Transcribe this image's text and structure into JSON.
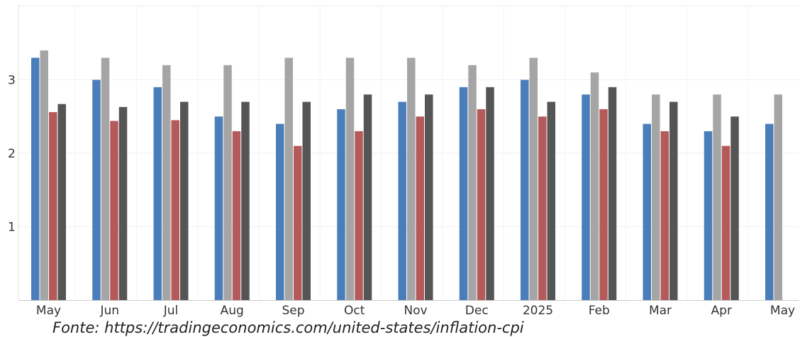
{
  "chart_data": {
    "type": "bar",
    "title": "",
    "xlabel": "",
    "ylabel": "",
    "categories": [
      "May",
      "Jun",
      "Jul",
      "Aug",
      "Sep",
      "Oct",
      "Nov",
      "Dec",
      "2025",
      "Feb",
      "Mar",
      "Apr",
      "May"
    ],
    "ylim": [
      0,
      4
    ],
    "yticks": [
      "1",
      "2",
      "3"
    ],
    "grid": true,
    "legend": "none",
    "series": [
      {
        "color": "#4a7ebb",
        "values": [
          3.3,
          3.0,
          2.9,
          2.5,
          2.4,
          2.6,
          2.7,
          2.9,
          3.0,
          2.8,
          2.4,
          2.3,
          2.4
        ]
      },
      {
        "color": "#a5a5a5",
        "values": [
          3.4,
          3.3,
          3.2,
          3.2,
          3.3,
          3.3,
          3.3,
          3.2,
          3.3,
          3.1,
          2.8,
          2.8,
          2.8
        ]
      },
      {
        "color": "#b55a5a",
        "values": [
          2.56,
          2.44,
          2.45,
          2.3,
          2.1,
          2.3,
          2.5,
          2.6,
          2.5,
          2.6,
          2.3,
          2.1,
          null
        ]
      },
      {
        "color": "#555555",
        "values": [
          2.67,
          2.63,
          2.7,
          2.7,
          2.7,
          2.8,
          2.8,
          2.9,
          2.7,
          2.9,
          2.7,
          2.5,
          null
        ]
      }
    ]
  },
  "source_note": "Fonte: https://tradingeconomics.com/united-states/inflation-cpi"
}
